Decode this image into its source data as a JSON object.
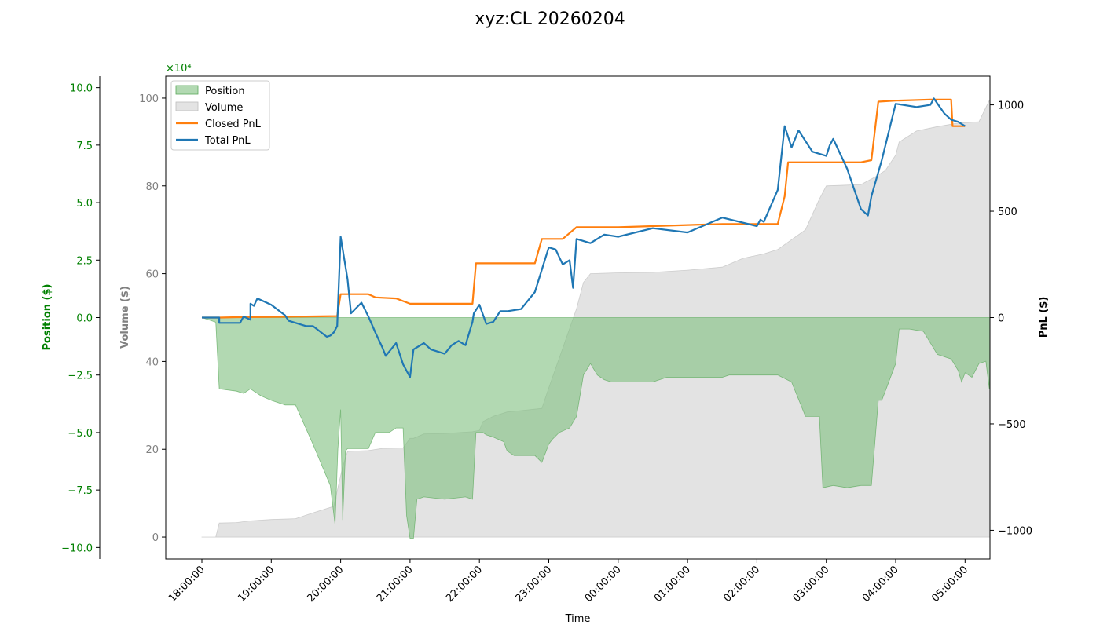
{
  "chart_data": {
    "type": "line",
    "title": "xyz:CL 20260204",
    "xlabel": "Time",
    "x_ticks": [
      "18:00:00",
      "19:00:00",
      "20:00:00",
      "21:00:00",
      "22:00:00",
      "23:00:00",
      "00:00:00",
      "01:00:00",
      "02:00:00",
      "03:00:00",
      "04:00:00",
      "05:00:00"
    ],
    "x_range_hours": [
      -0.52,
      11.43
    ],
    "grid": false,
    "legend_position": "upper-left",
    "axes": {
      "position": {
        "label": "Position ($)",
        "ylim": [
          -10.5,
          10.5
        ],
        "ticks": [
          10.0,
          7.5,
          5.0,
          2.5,
          0.0,
          -2.5,
          -5.0,
          -7.5,
          -10.0
        ],
        "tick_labels": [
          "10.0",
          "7.5",
          "5.0",
          "2.5",
          "0.0",
          "−2.5",
          "−5.0",
          "−7.5",
          "−10.0"
        ],
        "scale_label": "×10⁴",
        "color": "#008000"
      },
      "volume": {
        "label": "Volume ($)",
        "ylim": [
          -5,
          105
        ],
        "ticks": [
          0,
          20,
          40,
          60,
          80,
          100
        ],
        "tick_labels": [
          "0",
          "20",
          "40",
          "60",
          "80",
          "100"
        ],
        "color": "#808080"
      },
      "pnl": {
        "label": "PnL ($)",
        "ylim": [
          -1135,
          1135
        ],
        "ticks": [
          1000,
          500,
          0,
          -500,
          -1000
        ],
        "tick_labels": [
          "1000",
          "500",
          "0",
          "−500",
          "−1000"
        ],
        "color": "#000000"
      }
    },
    "series": [
      {
        "name": "Position",
        "kind": "area",
        "axis": "position",
        "color": "#7fbf7f",
        "points": [
          [
            0,
            0
          ],
          [
            0.2,
            -0.2
          ],
          [
            0.25,
            -3.1
          ],
          [
            0.5,
            -3.2
          ],
          [
            0.6,
            -3.3
          ],
          [
            0.7,
            -3.1
          ],
          [
            0.85,
            -3.4
          ],
          [
            1.0,
            -3.6
          ],
          [
            1.2,
            -3.8
          ],
          [
            1.35,
            -3.8
          ],
          [
            1.6,
            -5.5
          ],
          [
            1.85,
            -7.3
          ],
          [
            1.92,
            -9.0
          ],
          [
            1.96,
            -5.7
          ],
          [
            2.0,
            -4.0
          ],
          [
            2.03,
            -8.8
          ],
          [
            2.07,
            -5.8
          ],
          [
            2.1,
            -5.7
          ],
          [
            2.4,
            -5.7
          ],
          [
            2.5,
            -5.0
          ],
          [
            2.7,
            -5.0
          ],
          [
            2.8,
            -4.8
          ],
          [
            2.9,
            -4.8
          ],
          [
            2.95,
            -8.6
          ],
          [
            3.0,
            -9.6
          ],
          [
            3.05,
            -9.6
          ],
          [
            3.1,
            -7.9
          ],
          [
            3.2,
            -7.8
          ],
          [
            3.5,
            -7.9
          ],
          [
            3.8,
            -7.8
          ],
          [
            3.9,
            -7.9
          ],
          [
            3.95,
            -5.0
          ],
          [
            4.05,
            -5.0
          ],
          [
            4.1,
            -5.1
          ],
          [
            4.2,
            -5.2
          ],
          [
            4.35,
            -5.4
          ],
          [
            4.4,
            -5.8
          ],
          [
            4.45,
            -5.9
          ],
          [
            4.5,
            -6.0
          ],
          [
            4.6,
            -6.0
          ],
          [
            4.8,
            -6.0
          ],
          [
            4.9,
            -6.3
          ],
          [
            5.0,
            -5.5
          ],
          [
            5.05,
            -5.3
          ],
          [
            5.15,
            -5.0
          ],
          [
            5.3,
            -4.8
          ],
          [
            5.4,
            -4.3
          ],
          [
            5.5,
            -2.5
          ],
          [
            5.6,
            -2.0
          ],
          [
            5.7,
            -2.5
          ],
          [
            5.8,
            -2.7
          ],
          [
            5.9,
            -2.8
          ],
          [
            5.95,
            -2.8
          ],
          [
            6.2,
            -2.8
          ],
          [
            6.5,
            -2.8
          ],
          [
            6.7,
            -2.6
          ],
          [
            7.0,
            -2.6
          ],
          [
            7.2,
            -2.6
          ],
          [
            7.5,
            -2.6
          ],
          [
            7.6,
            -2.5
          ],
          [
            8.0,
            -2.5
          ],
          [
            8.2,
            -2.5
          ],
          [
            8.3,
            -2.5
          ],
          [
            8.5,
            -2.8
          ],
          [
            8.7,
            -4.3
          ],
          [
            8.9,
            -4.3
          ],
          [
            8.95,
            -7.4
          ],
          [
            9.1,
            -7.3
          ],
          [
            9.3,
            -7.4
          ],
          [
            9.5,
            -7.3
          ],
          [
            9.65,
            -7.3
          ],
          [
            9.75,
            -3.6
          ],
          [
            9.8,
            -3.6
          ],
          [
            9.85,
            -3.2
          ],
          [
            10.0,
            -2.0
          ],
          [
            10.05,
            -0.5
          ],
          [
            10.2,
            -0.5
          ],
          [
            10.4,
            -0.6
          ],
          [
            10.6,
            -1.6
          ],
          [
            10.8,
            -1.8
          ],
          [
            10.9,
            -2.3
          ],
          [
            10.95,
            -2.8
          ],
          [
            11.0,
            -2.4
          ],
          [
            11.1,
            -2.6
          ],
          [
            11.2,
            -2.0
          ],
          [
            11.3,
            -1.9
          ],
          [
            11.35,
            -3.1
          ],
          [
            11.38,
            -0.3
          ],
          [
            11.4,
            -2.9
          ],
          [
            11.43,
            -3.0
          ]
        ]
      },
      {
        "name": "Volume",
        "kind": "area",
        "axis": "volume",
        "color": "#c8c8c8",
        "points": [
          [
            0,
            0
          ],
          [
            0.2,
            0
          ],
          [
            0.25,
            3.2
          ],
          [
            0.5,
            3.3
          ],
          [
            0.7,
            3.7
          ],
          [
            1.0,
            4.0
          ],
          [
            1.35,
            4.2
          ],
          [
            1.6,
            5.5
          ],
          [
            1.9,
            7.0
          ],
          [
            2.0,
            14
          ],
          [
            2.03,
            16
          ],
          [
            2.1,
            19.5
          ],
          [
            2.4,
            19.7
          ],
          [
            2.6,
            20.2
          ],
          [
            2.9,
            20.3
          ],
          [
            3.0,
            22.5
          ],
          [
            3.05,
            22.5
          ],
          [
            3.2,
            23.5
          ],
          [
            3.5,
            23.6
          ],
          [
            3.9,
            24.0
          ],
          [
            4.0,
            24.3
          ],
          [
            4.05,
            26.3
          ],
          [
            4.2,
            27.5
          ],
          [
            4.4,
            28.5
          ],
          [
            4.6,
            28.8
          ],
          [
            4.9,
            29.3
          ],
          [
            5.0,
            34
          ],
          [
            5.2,
            43
          ],
          [
            5.4,
            52
          ],
          [
            5.5,
            58
          ],
          [
            5.6,
            60
          ],
          [
            6.0,
            60.2
          ],
          [
            6.5,
            60.3
          ],
          [
            7.0,
            60.8
          ],
          [
            7.5,
            61.5
          ],
          [
            7.8,
            63.5
          ],
          [
            8.1,
            64.5
          ],
          [
            8.3,
            65.5
          ],
          [
            8.7,
            70
          ],
          [
            8.9,
            77
          ],
          [
            9.0,
            80
          ],
          [
            9.5,
            80.3
          ],
          [
            9.7,
            82
          ],
          [
            9.85,
            83.5
          ],
          [
            10.0,
            87
          ],
          [
            10.05,
            90
          ],
          [
            10.3,
            92.5
          ],
          [
            10.6,
            93.5
          ],
          [
            10.9,
            94.3
          ],
          [
            11.2,
            94.6
          ],
          [
            11.35,
            99.5
          ],
          [
            11.43,
            100
          ]
        ]
      },
      {
        "name": "Closed PnL",
        "kind": "line",
        "axis": "pnl",
        "color": "#ff7f0e",
        "points": [
          [
            0,
            0
          ],
          [
            0.25,
            0
          ],
          [
            0.5,
            2
          ],
          [
            1.0,
            3
          ],
          [
            1.5,
            5
          ],
          [
            1.95,
            7
          ],
          [
            2.0,
            110
          ],
          [
            2.4,
            110
          ],
          [
            2.5,
            95
          ],
          [
            2.8,
            90
          ],
          [
            3.0,
            65
          ],
          [
            3.5,
            65
          ],
          [
            3.9,
            65
          ],
          [
            3.95,
            255
          ],
          [
            4.2,
            255
          ],
          [
            4.8,
            255
          ],
          [
            4.9,
            370
          ],
          [
            5.2,
            370
          ],
          [
            5.4,
            425
          ],
          [
            6.0,
            425
          ],
          [
            6.5,
            430
          ],
          [
            7.0,
            435
          ],
          [
            7.5,
            440
          ],
          [
            8.0,
            440
          ],
          [
            8.3,
            440
          ],
          [
            8.4,
            570
          ],
          [
            8.45,
            730
          ],
          [
            9.0,
            730
          ],
          [
            9.5,
            730
          ],
          [
            9.65,
            740
          ],
          [
            9.75,
            1015
          ],
          [
            10.0,
            1020
          ],
          [
            10.5,
            1025
          ],
          [
            10.8,
            1025
          ],
          [
            10.82,
            900
          ],
          [
            11.0,
            900
          ]
        ]
      },
      {
        "name": "Total PnL",
        "kind": "line",
        "axis": "pnl",
        "color": "#1f77b4",
        "points": [
          [
            0,
            0
          ],
          [
            0.25,
            0
          ],
          [
            0.25,
            -25
          ],
          [
            0.55,
            -25
          ],
          [
            0.6,
            5
          ],
          [
            0.7,
            -10
          ],
          [
            0.7,
            65
          ],
          [
            0.75,
            55
          ],
          [
            0.8,
            90
          ],
          [
            1.0,
            60
          ],
          [
            1.2,
            10
          ],
          [
            1.25,
            -15
          ],
          [
            1.5,
            -40
          ],
          [
            1.6,
            -40
          ],
          [
            1.8,
            -90
          ],
          [
            1.85,
            -85
          ],
          [
            1.9,
            -70
          ],
          [
            1.95,
            -40
          ],
          [
            2.0,
            380
          ],
          [
            2.1,
            180
          ],
          [
            2.15,
            20
          ],
          [
            2.3,
            70
          ],
          [
            2.4,
            5
          ],
          [
            2.5,
            -70
          ],
          [
            2.6,
            -140
          ],
          [
            2.65,
            -180
          ],
          [
            2.7,
            -160
          ],
          [
            2.8,
            -120
          ],
          [
            2.9,
            -220
          ],
          [
            3.0,
            -280
          ],
          [
            3.05,
            -150
          ],
          [
            3.2,
            -120
          ],
          [
            3.3,
            -150
          ],
          [
            3.5,
            -170
          ],
          [
            3.6,
            -130
          ],
          [
            3.7,
            -110
          ],
          [
            3.8,
            -130
          ],
          [
            3.9,
            -20
          ],
          [
            3.92,
            20
          ],
          [
            4.0,
            60
          ],
          [
            4.1,
            -30
          ],
          [
            4.2,
            -20
          ],
          [
            4.3,
            30
          ],
          [
            4.4,
            30
          ],
          [
            4.6,
            40
          ],
          [
            4.8,
            120
          ],
          [
            5.0,
            330
          ],
          [
            5.1,
            320
          ],
          [
            5.2,
            250
          ],
          [
            5.3,
            270
          ],
          [
            5.35,
            140
          ],
          [
            5.4,
            370
          ],
          [
            5.6,
            350
          ],
          [
            5.8,
            390
          ],
          [
            6.0,
            380
          ],
          [
            6.5,
            420
          ],
          [
            7.0,
            400
          ],
          [
            7.5,
            470
          ],
          [
            8.0,
            430
          ],
          [
            8.05,
            460
          ],
          [
            8.1,
            450
          ],
          [
            8.3,
            600
          ],
          [
            8.4,
            900
          ],
          [
            8.5,
            800
          ],
          [
            8.6,
            880
          ],
          [
            8.8,
            780
          ],
          [
            9.0,
            760
          ],
          [
            9.05,
            810
          ],
          [
            9.1,
            840
          ],
          [
            9.3,
            700
          ],
          [
            9.5,
            510
          ],
          [
            9.6,
            480
          ],
          [
            9.65,
            570
          ],
          [
            9.8,
            740
          ],
          [
            10.0,
            1005
          ],
          [
            10.3,
            990
          ],
          [
            10.5,
            1000
          ],
          [
            10.55,
            1030
          ],
          [
            10.7,
            960
          ],
          [
            10.8,
            930
          ],
          [
            10.9,
            920
          ],
          [
            11.0,
            900
          ]
        ]
      }
    ]
  }
}
